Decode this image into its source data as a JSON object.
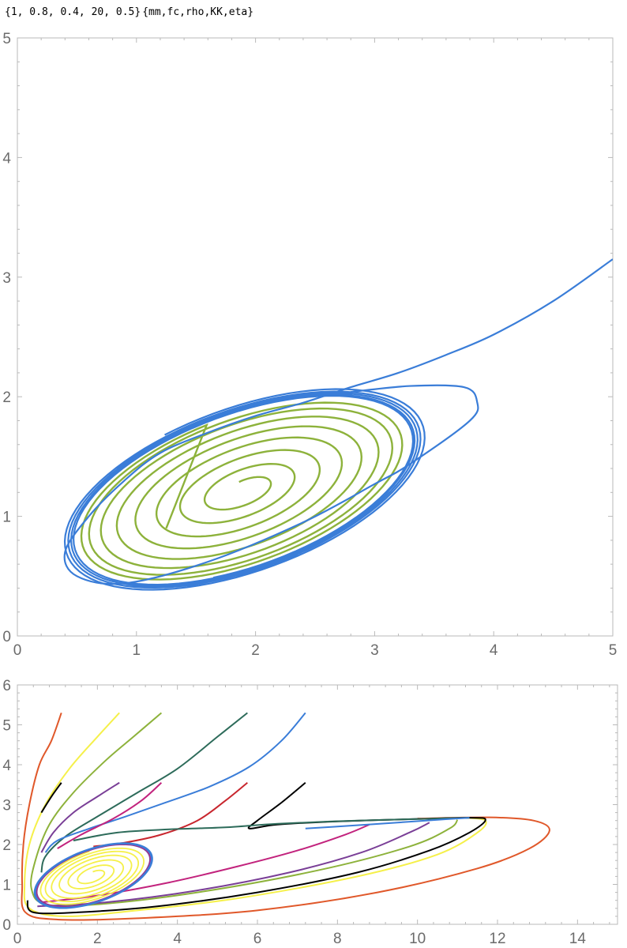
{
  "header": {
    "values_text": "{1, 0.8, 0.4, 20, 0.5}",
    "names_text": "{mm,fc,rho,KK,eta}"
  },
  "chart_data": [
    {
      "type": "line",
      "title": "",
      "xlabel": "",
      "ylabel": "",
      "xlim": [
        0,
        5
      ],
      "ylim": [
        0,
        5
      ],
      "x_ticks": [
        0,
        1,
        2,
        3,
        4,
        5
      ],
      "y_ticks": [
        0,
        1,
        2,
        3,
        4,
        5
      ],
      "x_tick_labels": [
        "0",
        "1",
        "2",
        "3",
        "4",
        "5"
      ],
      "y_tick_labels": [
        "0",
        "1",
        "2",
        "3",
        "4",
        "5"
      ],
      "grid": false,
      "limit_cycle": {
        "center": [
          1.9,
          1.22
        ],
        "a": 1.55,
        "b": 0.7
      },
      "series": [
        {
          "kind": "trajectory",
          "color": "#3a7dd8",
          "start": [
            5,
            3.15
          ],
          "entry": [
            3.86,
            1.96
          ],
          "inflow_points": [
            [
              5,
              3.15
            ],
            [
              4.5,
              2.8
            ],
            [
              4.0,
              2.52
            ],
            [
              3.6,
              2.35
            ],
            [
              3.2,
              2.2
            ],
            [
              2.8,
              2.08
            ],
            [
              2.4,
              1.95
            ],
            [
              2.0,
              1.84
            ],
            [
              1.6,
              1.7
            ],
            [
              1.2,
              1.53
            ],
            [
              0.9,
              1.3
            ],
            [
              0.6,
              1.0
            ],
            [
              0.4,
              0.7
            ],
            [
              0.5,
              0.5
            ],
            [
              0.9,
              0.44
            ],
            [
              1.6,
              0.62
            ],
            [
              2.4,
              0.95
            ],
            [
              3.0,
              1.27
            ],
            [
              3.3,
              1.44
            ],
            [
              3.8,
              1.8
            ],
            [
              3.86,
              1.96
            ],
            [
              3.75,
              2.08
            ],
            [
              3.3,
              2.09
            ],
            [
              2.8,
              2.04
            ]
          ],
          "spiral_scales": [
            1.08,
            1.05,
            1.03,
            1.01,
            1.0
          ],
          "rotations": 4.6
        },
        {
          "kind": "trajectory",
          "color": "#8db23b",
          "start": [
            1.25,
            0.9
          ],
          "spiral_scales": [
            0.12,
            0.28,
            0.45,
            0.6,
            0.73,
            0.84,
            0.92,
            0.97
          ],
          "rotations": 8.0
        }
      ]
    },
    {
      "type": "line",
      "title": "",
      "xlabel": "",
      "ylabel": "",
      "xlim": [
        0,
        15
      ],
      "ylim": [
        0,
        6
      ],
      "x_ticks": [
        0,
        2,
        4,
        6,
        8,
        10,
        12,
        14
      ],
      "y_ticks": [
        0,
        1,
        2,
        3,
        4,
        5,
        6
      ],
      "x_tick_labels": [
        "0",
        "2",
        "4",
        "6",
        "8",
        "10",
        "12",
        "14"
      ],
      "y_tick_labels": [
        "0",
        "1",
        "2",
        "3",
        "4",
        "5",
        "6"
      ],
      "grid": false,
      "limit_cycle": {
        "center": [
          1.9,
          1.22
        ],
        "a": 1.55,
        "b": 0.7
      },
      "inner_spiral_color": "#f5f04a",
      "series": [
        {
          "color": "#e0582a",
          "points": [
            [
              1.1,
              5.3
            ],
            [
              0.85,
              4.6
            ],
            [
              0.55,
              4.0
            ],
            [
              0.3,
              3.0
            ],
            [
              0.15,
              2.0
            ],
            [
              0.12,
              1.0
            ],
            [
              0.2,
              0.3
            ],
            [
              1.0,
              0.12
            ],
            [
              3.0,
              0.15
            ],
            [
              6.0,
              0.35
            ],
            [
              9.0,
              0.8
            ],
            [
              11.5,
              1.4
            ],
            [
              12.8,
              1.9
            ],
            [
              13.3,
              2.35
            ],
            [
              12.9,
              2.6
            ],
            [
              11.8,
              2.68
            ],
            [
              10.0,
              2.65
            ]
          ]
        },
        {
          "color": "#f5f04a",
          "points": [
            [
              2.55,
              5.3
            ],
            [
              2.0,
              4.7
            ],
            [
              1.3,
              3.9
            ],
            [
              0.7,
              3.0
            ],
            [
              0.3,
              2.0
            ],
            [
              0.18,
              1.0
            ],
            [
              0.3,
              0.4
            ],
            [
              1.2,
              0.2
            ],
            [
              3.0,
              0.35
            ],
            [
              5.5,
              0.65
            ],
            [
              8.5,
              1.2
            ],
            [
              10.5,
              1.75
            ],
            [
              11.5,
              2.3
            ],
            [
              11.7,
              2.6
            ],
            [
              11.2,
              2.67
            ]
          ]
        },
        {
          "color": "#8db23b",
          "points": [
            [
              3.6,
              5.3
            ],
            [
              2.9,
              4.7
            ],
            [
              2.2,
              4.1
            ],
            [
              1.4,
              3.3
            ],
            [
              0.8,
              2.5
            ],
            [
              0.45,
              1.6
            ],
            [
              0.35,
              0.9
            ],
            [
              0.7,
              0.5
            ],
            [
              2.0,
              0.5
            ],
            [
              4.5,
              0.8
            ],
            [
              7.5,
              1.35
            ],
            [
              9.8,
              1.95
            ],
            [
              10.8,
              2.4
            ],
            [
              11.0,
              2.62
            ]
          ]
        },
        {
          "color": "#2d6b5a",
          "points": [
            [
              5.75,
              5.3
            ],
            [
              5.0,
              4.7
            ],
            [
              4.0,
              3.9
            ],
            [
              3.0,
              3.3
            ],
            [
              2.0,
              2.7
            ],
            [
              1.2,
              2.2
            ],
            [
              0.7,
              1.7
            ],
            [
              0.6,
              1.3
            ]
          ]
        },
        {
          "color": "#3a7dd8",
          "points": [
            [
              7.2,
              5.3
            ],
            [
              6.6,
              4.6
            ],
            [
              5.8,
              3.95
            ],
            [
              4.8,
              3.45
            ],
            [
              3.7,
              3.05
            ],
            [
              2.7,
              2.7
            ],
            [
              1.8,
              2.4
            ],
            [
              1.0,
              2.1
            ],
            [
              0.7,
              1.8
            ]
          ]
        },
        {
          "color": "#000000",
          "points": [
            [
              1.1,
              3.55
            ],
            [
              0.85,
              3.2
            ],
            [
              0.6,
              2.8
            ]
          ]
        },
        {
          "color": "#7a3f97",
          "points": [
            [
              2.55,
              3.55
            ],
            [
              2.0,
              3.2
            ],
            [
              1.4,
              2.8
            ],
            [
              0.9,
              2.3
            ],
            [
              0.6,
              1.8
            ]
          ]
        },
        {
          "color": "#c2237d",
          "points": [
            [
              3.6,
              3.55
            ],
            [
              3.1,
              3.1
            ],
            [
              2.4,
              2.65
            ],
            [
              1.6,
              2.25
            ],
            [
              1.0,
              1.9
            ]
          ]
        },
        {
          "color": "#c8262e",
          "points": [
            [
              5.75,
              3.55
            ],
            [
              5.2,
              3.1
            ],
            [
              4.5,
              2.6
            ],
            [
              3.6,
              2.25
            ],
            [
              2.7,
              2.05
            ],
            [
              1.9,
              1.95
            ]
          ]
        },
        {
          "color": "#000000",
          "points": [
            [
              7.2,
              3.55
            ],
            [
              6.6,
              3.05
            ],
            [
              6.0,
              2.6
            ],
            [
              5.8,
              2.4
            ],
            [
              6.5,
              2.5
            ],
            [
              8.0,
              2.58
            ],
            [
              10.0,
              2.64
            ],
            [
              11.3,
              2.67
            ],
            [
              11.7,
              2.62
            ],
            [
              11.3,
              2.3
            ],
            [
              10.3,
              1.85
            ],
            [
              8.5,
              1.3
            ],
            [
              6.0,
              0.8
            ],
            [
              3.5,
              0.45
            ],
            [
              1.5,
              0.3
            ],
            [
              0.4,
              0.3
            ],
            [
              0.25,
              0.6
            ]
          ]
        },
        {
          "color": "#2d6b5a",
          "points": [
            [
              1.4,
              2.1
            ],
            [
              2.5,
              2.3
            ],
            [
              3.8,
              2.38
            ],
            [
              5.2,
              2.43
            ],
            [
              6.5,
              2.52
            ],
            [
              8.5,
              2.6
            ],
            [
              10.5,
              2.65
            ],
            [
              11.3,
              2.67
            ]
          ]
        },
        {
          "color": "#c2237d",
          "points": [
            [
              0.6,
              0.55
            ],
            [
              2.0,
              0.72
            ],
            [
              3.8,
              1.05
            ],
            [
              5.5,
              1.45
            ],
            [
              7.0,
              1.85
            ],
            [
              8.2,
              2.25
            ],
            [
              8.8,
              2.5
            ]
          ]
        },
        {
          "color": "#7a3f97",
          "points": [
            [
              0.5,
              0.45
            ],
            [
              2.2,
              0.55
            ],
            [
              4.5,
              0.85
            ],
            [
              6.8,
              1.3
            ],
            [
              8.6,
              1.8
            ],
            [
              9.8,
              2.3
            ],
            [
              10.3,
              2.55
            ]
          ]
        },
        {
          "color": "#3a7dd8",
          "points": [
            [
              7.2,
              2.4
            ],
            [
              8.3,
              2.47
            ],
            [
              9.5,
              2.55
            ],
            [
              10.5,
              2.62
            ],
            [
              11.3,
              2.67
            ]
          ]
        }
      ]
    }
  ]
}
